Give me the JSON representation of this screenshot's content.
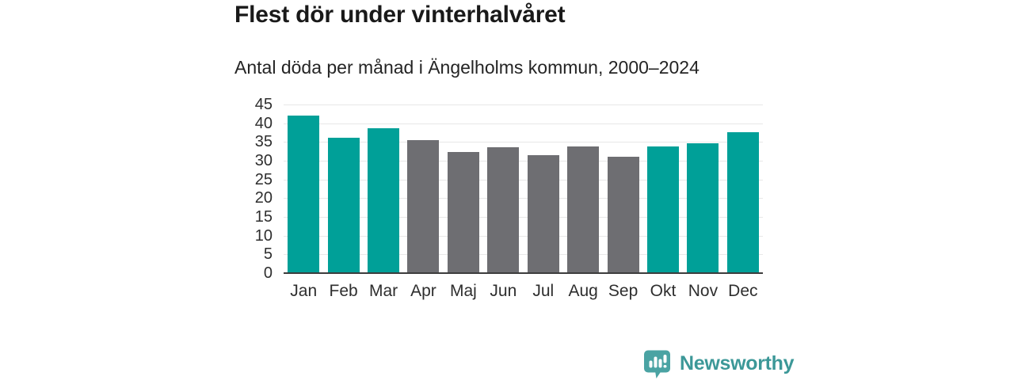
{
  "header": {
    "title": "Flest dör under vinterhalvåret",
    "subtitle": "Antal döda per månad i Ängelholms kommun, 2000–2024"
  },
  "chart_data": {
    "type": "bar",
    "title": "Flest dör under vinterhalvåret",
    "subtitle": "Antal döda per månad i Ängelholms kommun, 2000–2024",
    "categories": [
      "Jan",
      "Feb",
      "Mar",
      "Apr",
      "Maj",
      "Jun",
      "Jul",
      "Aug",
      "Sep",
      "Okt",
      "Nov",
      "Dec"
    ],
    "values": [
      42.1,
      36.2,
      38.7,
      35.6,
      32.4,
      33.7,
      31.4,
      33.8,
      31.0,
      33.8,
      34.6,
      37.6
    ],
    "bar_groups": [
      "winter",
      "winter",
      "winter",
      "summer",
      "summer",
      "summer",
      "summer",
      "summer",
      "summer",
      "winter",
      "winter",
      "winter"
    ],
    "xlabel": "",
    "ylabel": "",
    "ylim": [
      0,
      45
    ],
    "ytick_step": 5,
    "grid": true,
    "legend": null
  },
  "colors": {
    "winter_bar": "#00a098",
    "summer_bar": "#6e6e72",
    "gridline": "#e8e8e8",
    "baseline": "#3d3d3d",
    "brand_text": "#3c9898",
    "brand_icon": "#4aa3a3"
  },
  "footer": {
    "brand": "Newsworthy",
    "logo_icon": "newsworthy-speech-bubble-bar-chart-icon"
  }
}
